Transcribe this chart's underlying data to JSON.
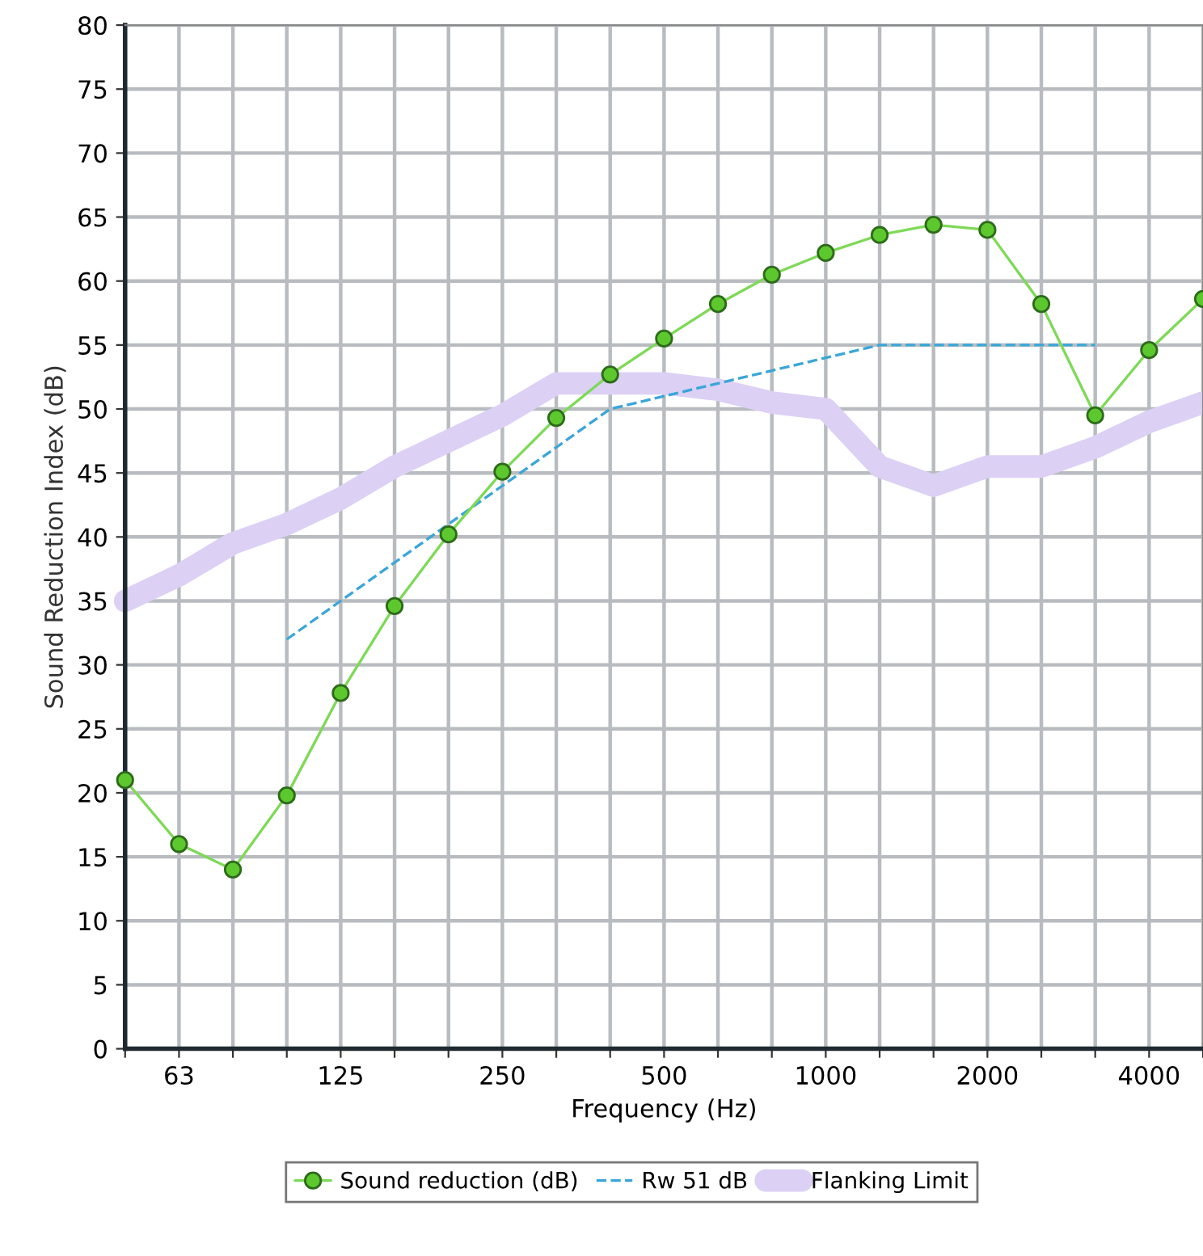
{
  "chart_data": {
    "type": "line",
    "xlabel": "Frequency (Hz)",
    "ylabel": "Sound Reduction Index (dB)",
    "categories": [
      null,
      "63",
      null,
      null,
      "125",
      null,
      null,
      "250",
      null,
      null,
      "500",
      null,
      null,
      "1000",
      null,
      null,
      "2000",
      null,
      null,
      "4000",
      null
    ],
    "ylim": [
      0,
      80
    ],
    "yticks": [
      0,
      5,
      10,
      15,
      20,
      25,
      30,
      35,
      40,
      45,
      50,
      55,
      60,
      65,
      70,
      75,
      80
    ],
    "grid": true,
    "legend": "bottom",
    "series": [
      {
        "name": "Flanking Limit",
        "color": "#dcd0f5",
        "line_style": "solid",
        "marker": "none",
        "values": [
          35,
          37,
          39.5,
          41,
          43,
          45.5,
          47.5,
          49.5,
          52,
          52,
          52,
          51.5,
          50.5,
          50,
          45.5,
          44,
          45.5,
          45.5,
          47,
          49,
          50.5
        ]
      },
      {
        "name": "Rw 51 dB",
        "color": "#3aa6d8",
        "line_style": "dashed",
        "marker": "none",
        "values": [
          null,
          null,
          null,
          32,
          35,
          38,
          41,
          44,
          47,
          50,
          51,
          52,
          53,
          54,
          55,
          55,
          55,
          55,
          55,
          null,
          null
        ]
      },
      {
        "name": "Sound reduction (dB)",
        "color": "#7ed957",
        "line_style": "solid",
        "marker": "circle",
        "values": [
          21,
          16,
          14,
          19.8,
          27.8,
          34.6,
          40.2,
          45.1,
          49.3,
          52.7,
          55.5,
          58.2,
          60.5,
          62.2,
          63.6,
          64.4,
          64,
          58.2,
          49.5,
          54.6,
          58.6
        ]
      }
    ]
  }
}
